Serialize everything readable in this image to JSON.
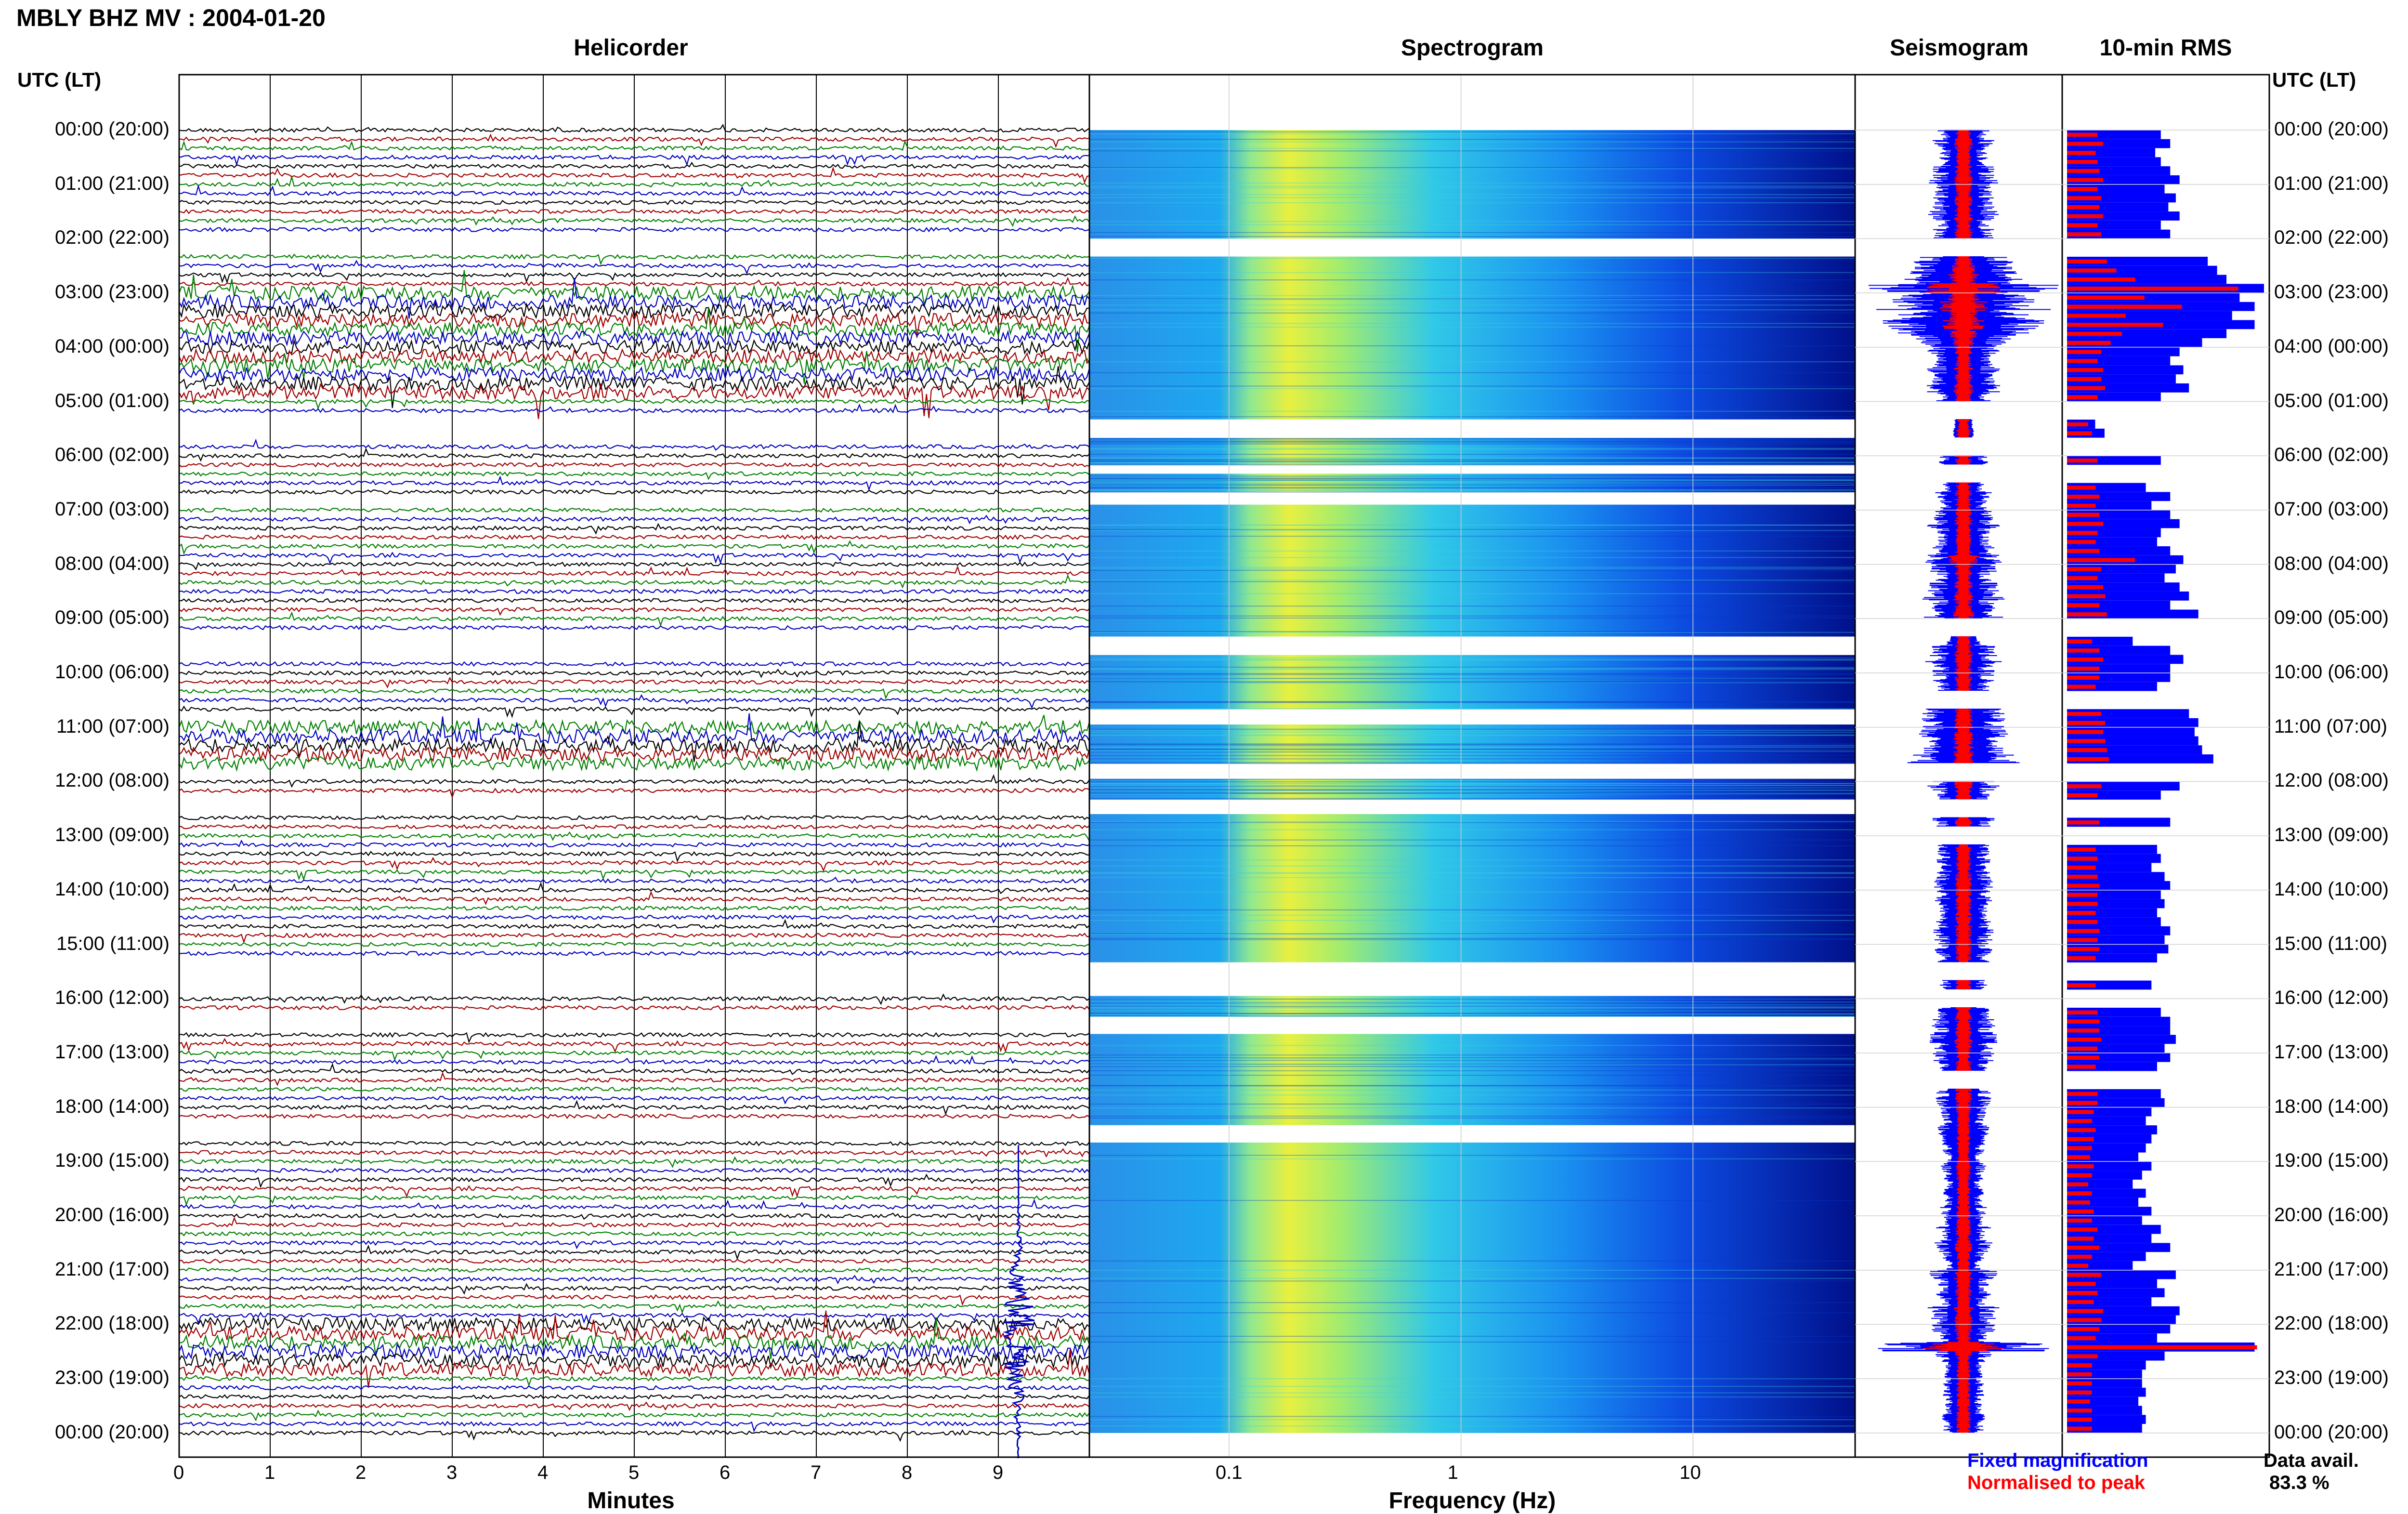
{
  "title": "MBLY BHZ MV : 2004-01-20",
  "panels": {
    "helicorder": "Helicorder",
    "spectrogram": "Spectrogram",
    "seismogram": "Seismogram",
    "rms": "10-min RMS"
  },
  "utc_header": "UTC (LT)",
  "time_labels": [
    "00:00 (20:00)",
    "01:00 (21:00)",
    "02:00 (22:00)",
    "03:00 (23:00)",
    "04:00 (00:00)",
    "05:00 (01:00)",
    "06:00 (02:00)",
    "07:00 (03:00)",
    "08:00 (04:00)",
    "09:00 (05:00)",
    "10:00 (06:00)",
    "11:00 (07:00)",
    "12:00 (08:00)",
    "13:00 (09:00)",
    "14:00 (10:00)",
    "15:00 (11:00)",
    "16:00 (12:00)",
    "17:00 (13:00)",
    "18:00 (14:00)",
    "19:00 (15:00)",
    "20:00 (16:00)",
    "21:00 (17:00)",
    "22:00 (18:00)",
    "23:00 (19:00)",
    "00:00 (20:00)"
  ],
  "minutes_axis": {
    "label": "Minutes",
    "ticks": [
      "0",
      "1",
      "2",
      "3",
      "4",
      "5",
      "6",
      "7",
      "8",
      "9"
    ]
  },
  "frequency_axis": {
    "label": "Frequency (Hz)",
    "ticks": [
      "0.1",
      "1",
      "10"
    ]
  },
  "legend": {
    "fixed": "Fixed magnification",
    "normalised": "Normalised to peak"
  },
  "data_availability": {
    "label": "Data avail.",
    "value": "83.3 %"
  },
  "colors": {
    "trace_cycle": [
      "#000000",
      "#a00000",
      "#008000",
      "#0000c0"
    ],
    "rms_fixed": "#0000ff",
    "rms_normalised": "#ff0000",
    "spectrogram_scale": [
      "#00008f",
      "#0000ff",
      "#00bfff",
      "#40ffbf",
      "#ffff00"
    ]
  },
  "chart_data": {
    "type": "heatmap",
    "station": "MBLY BHZ MV",
    "date": "2004-01-20",
    "helicorder": {
      "x_unit": "minutes",
      "xlim": [
        0,
        10
      ],
      "rows_per_hour": 6,
      "hours": 24,
      "energetic_hours_utc": [
        3,
        4,
        11,
        22
      ]
    },
    "spectrogram": {
      "x_unit": "Hz",
      "xscale": "log",
      "xlim": [
        0.025,
        50
      ],
      "peak_energy_band_hz": [
        0.13,
        0.5
      ]
    },
    "data_gaps_utc": [
      [
        2.0,
        2.33
      ],
      [
        5.33,
        5.67
      ],
      [
        6.17,
        6.33
      ],
      [
        6.67,
        6.9
      ],
      [
        9.33,
        9.67
      ],
      [
        10.67,
        10.95
      ],
      [
        11.67,
        11.95
      ],
      [
        12.33,
        12.6
      ],
      [
        15.33,
        15.95
      ],
      [
        16.33,
        16.65
      ],
      [
        18.33,
        18.65
      ]
    ],
    "rms_10min": {
      "fixed": [
        0.5,
        0.55,
        0.47,
        0.5,
        0.55,
        0.6,
        0.52,
        0.58,
        0.54,
        0.6,
        0.5,
        0.55,
        0.0,
        0.0,
        0.75,
        0.8,
        0.85,
        1.05,
        0.92,
        1.0,
        0.88,
        1.0,
        0.85,
        0.72,
        0.6,
        0.55,
        0.62,
        0.58,
        0.65,
        0.5,
        0.0,
        0.0,
        0.15,
        0.2,
        0.0,
        0.0,
        0.5,
        0.0,
        0.0,
        0.42,
        0.55,
        0.45,
        0.55,
        0.6,
        0.5,
        0.48,
        0.55,
        0.62,
        0.58,
        0.52,
        0.6,
        0.65,
        0.55,
        0.7,
        0.0,
        0.0,
        0.35,
        0.55,
        0.62,
        0.55,
        0.55,
        0.48,
        0.0,
        0.0,
        0.65,
        0.7,
        0.68,
        0.7,
        0.72,
        0.78,
        0.0,
        0.0,
        0.6,
        0.5,
        0.0,
        0.0,
        0.55,
        0.0,
        0.0,
        0.48,
        0.5,
        0.45,
        0.52,
        0.55,
        0.5,
        0.52,
        0.48,
        0.5,
        0.55,
        0.52,
        0.54,
        0.48,
        0.0,
        0.0,
        0.45,
        0.0,
        0.0,
        0.5,
        0.55,
        0.55,
        0.58,
        0.52,
        0.55,
        0.48,
        0.0,
        0.0,
        0.5,
        0.52,
        0.45,
        0.42,
        0.48,
        0.45,
        0.42,
        0.38,
        0.45,
        0.4,
        0.35,
        0.42,
        0.38,
        0.45,
        0.4,
        0.5,
        0.45,
        0.55,
        0.42,
        0.35,
        0.58,
        0.48,
        0.52,
        0.45,
        0.6,
        0.58,
        0.55,
        0.48,
        1.0,
        0.52,
        0.42,
        0.4,
        0.4,
        0.42,
        0.38,
        0.4,
        0.42,
        0.4
      ],
      "normalised": [
        0.15,
        0.18,
        0.14,
        0.15,
        0.16,
        0.18,
        0.15,
        0.17,
        0.16,
        0.18,
        0.15,
        0.17,
        0.0,
        0.0,
        0.2,
        0.25,
        0.35,
        0.9,
        0.4,
        0.6,
        0.3,
        0.5,
        0.28,
        0.22,
        0.17,
        0.15,
        0.18,
        0.17,
        0.19,
        0.15,
        0.0,
        0.0,
        0.1,
        0.12,
        0.0,
        0.0,
        0.15,
        0.0,
        0.0,
        0.14,
        0.16,
        0.14,
        0.16,
        0.18,
        0.15,
        0.14,
        0.16,
        0.35,
        0.17,
        0.15,
        0.18,
        0.19,
        0.16,
        0.2,
        0.0,
        0.0,
        0.12,
        0.16,
        0.18,
        0.16,
        0.16,
        0.14,
        0.0,
        0.0,
        0.17,
        0.19,
        0.18,
        0.19,
        0.2,
        0.21,
        0.0,
        0.0,
        0.17,
        0.15,
        0.0,
        0.0,
        0.16,
        0.0,
        0.0,
        0.14,
        0.15,
        0.14,
        0.15,
        0.16,
        0.15,
        0.15,
        0.14,
        0.15,
        0.16,
        0.15,
        0.16,
        0.14,
        0.0,
        0.0,
        0.14,
        0.0,
        0.0,
        0.15,
        0.16,
        0.16,
        0.17,
        0.15,
        0.16,
        0.14,
        0.0,
        0.0,
        0.15,
        0.15,
        0.13,
        0.12,
        0.14,
        0.13,
        0.12,
        0.11,
        0.13,
        0.12,
        0.1,
        0.12,
        0.11,
        0.13,
        0.12,
        0.15,
        0.13,
        0.16,
        0.12,
        0.1,
        0.17,
        0.14,
        0.15,
        0.13,
        0.18,
        0.17,
        0.16,
        0.14,
        1.0,
        0.15,
        0.12,
        0.12,
        0.12,
        0.12,
        0.11,
        0.12,
        0.12,
        0.12
      ]
    }
  }
}
